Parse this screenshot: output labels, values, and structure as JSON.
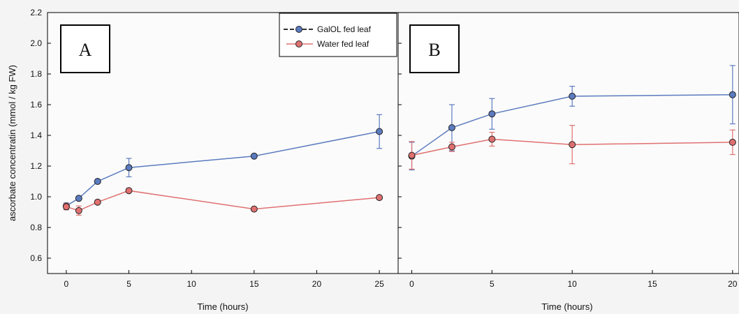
{
  "chart_data": [
    {
      "panel": "A",
      "type": "line",
      "xlabel": "Time (hours)",
      "ylabel": "ascorbate concentratin (mmol / kg FW)",
      "xlim": [
        -1.5,
        26.5
      ],
      "ylim": [
        0.5,
        2.2
      ],
      "xticks": [
        0,
        5,
        10,
        15,
        20,
        25
      ],
      "yticks": [
        0.6,
        0.8,
        1.0,
        1.2,
        1.4,
        1.6,
        1.8,
        2.0,
        2.2
      ],
      "ytick_labels": [
        "0.6",
        "0.8",
        "1.0",
        "1.2",
        "1.4",
        "1.6",
        "1.8",
        "2.0",
        "2.2"
      ],
      "legend": "top-right",
      "series": [
        {
          "name": "GalOL fed leaf",
          "color": "#5b7bbf",
          "points": [
            {
              "x": 0,
              "y": 0.94,
              "err": 0.02
            },
            {
              "x": 1,
              "y": 0.99,
              "err": 0.01
            },
            {
              "x": 2.5,
              "y": 1.1,
              "err": 0.01
            },
            {
              "x": 5,
              "y": 1.19,
              "err": 0.06
            },
            {
              "x": 15,
              "y": 1.265,
              "err": 0.01
            },
            {
              "x": 25,
              "y": 1.425,
              "err": 0.11
            }
          ]
        },
        {
          "name": "Water fed leaf",
          "color": "#e07070",
          "points": [
            {
              "x": 0,
              "y": 0.935,
              "err": 0.02
            },
            {
              "x": 1,
              "y": 0.91,
              "err": 0.03
            },
            {
              "x": 2.5,
              "y": 0.965,
              "err": 0.01
            },
            {
              "x": 5,
              "y": 1.04,
              "err": 0.01
            },
            {
              "x": 15,
              "y": 0.92,
              "err": 0.01
            },
            {
              "x": 25,
              "y": 0.995,
              "err": 0.01
            }
          ]
        }
      ]
    },
    {
      "panel": "B",
      "type": "line",
      "xlabel": "Time (hours)",
      "ylabel": "",
      "xlim": [
        -0.85,
        20.4
      ],
      "ylim": [
        0.5,
        2.2
      ],
      "xticks": [
        0,
        5,
        10,
        15,
        20
      ],
      "series": [
        {
          "name": "GalOL fed leaf",
          "color": "#5b7bbf",
          "points": [
            {
              "x": 0,
              "y": 1.265,
              "err": 0.09
            },
            {
              "x": 2.5,
              "y": 1.45,
              "err": 0.15
            },
            {
              "x": 5,
              "y": 1.54,
              "err": 0.1
            },
            {
              "x": 10,
              "y": 1.655,
              "err": 0.065
            },
            {
              "x": 20,
              "y": 1.665,
              "err": 0.19
            }
          ]
        },
        {
          "name": "Water fed leaf",
          "color": "#e07070",
          "points": [
            {
              "x": 0,
              "y": 1.27,
              "err": 0.09
            },
            {
              "x": 2.5,
              "y": 1.325,
              "err": 0.03
            },
            {
              "x": 5,
              "y": 1.375,
              "err": 0.045
            },
            {
              "x": 10,
              "y": 1.34,
              "err": 0.125
            },
            {
              "x": 20,
              "y": 1.355,
              "err": 0.08
            }
          ]
        }
      ]
    }
  ]
}
